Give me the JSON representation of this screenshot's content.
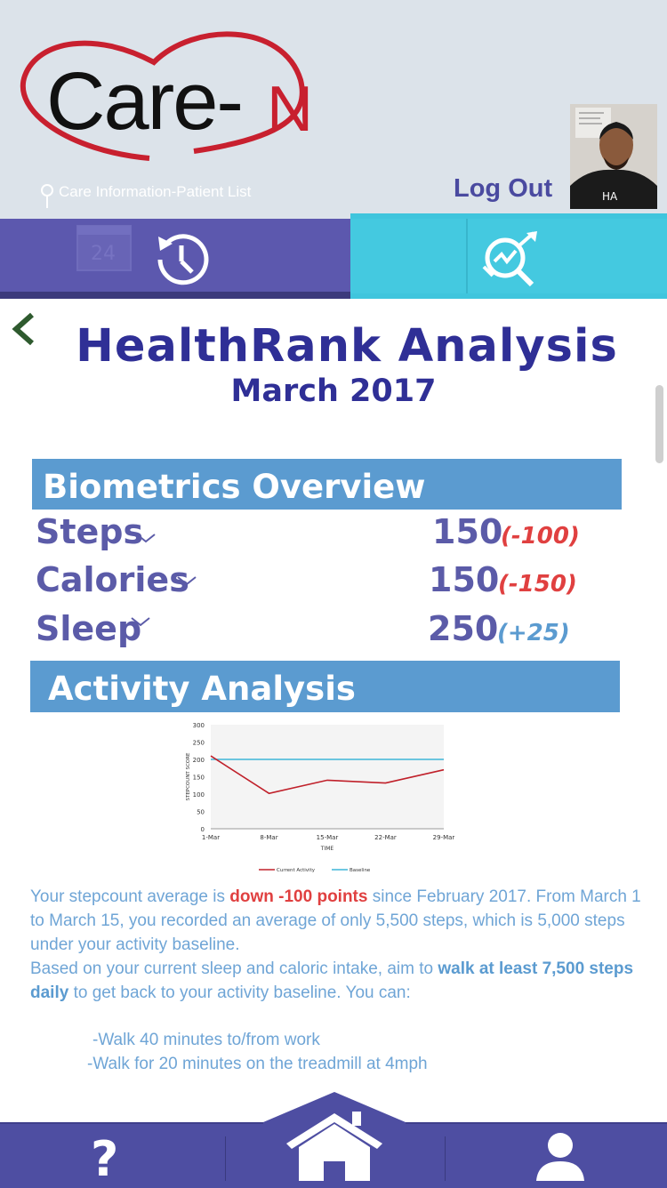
{
  "header": {
    "logo_main": "Care-",
    "logo_n": "N",
    "care_info": "Care Information-Patient List",
    "logout_label": "Log Out",
    "calendar_number": "24"
  },
  "colors": {
    "brand_purple": "#5c58ae",
    "brand_cyan": "#44c9e0",
    "title_blue": "#2f2f96",
    "section_blue": "#5b9bd0",
    "negative_red": "#e04040",
    "positive_blue": "#5b9bd0",
    "logo_red": "#c8202f"
  },
  "icons": {
    "tab_left": "history-icon",
    "tab_right": "analysis-icon",
    "back": "chevron-left-icon",
    "bottom_left": "help-icon",
    "bottom_center": "home-icon",
    "bottom_right": "user-icon"
  },
  "page": {
    "title": "HealthRank Analysis",
    "subtitle": "March 2017"
  },
  "biometrics": {
    "heading": "Biometrics Overview",
    "items": [
      {
        "label": "Steps",
        "value": "150",
        "delta": "(-100)"
      },
      {
        "label": "Calories",
        "value": "150",
        "delta": "(-150)"
      },
      {
        "label": "Sleep",
        "value": "250",
        "delta": "(+25)"
      }
    ]
  },
  "activity": {
    "heading": "Activity Analysis",
    "para1_pre": "Your stepcount average is ",
    "para1_hl": "down -100 points",
    "para1_post": " since February 2017. From March 1 to March 15, you recorded an average of only 5,500 steps, which is 5,000 steps under your activity baseline.",
    "para2_pre": "Based on your current sleep and caloric intake, aim to ",
    "para2_hl": "walk at least 7,500 steps daily",
    "para2_post": " to get back to your activity baseline. You can:",
    "bullets": [
      "-Walk 40 minutes to/from work",
      "-Walk for 20 minutes on the treadmill at 4mph"
    ]
  },
  "chart_data": {
    "type": "line",
    "x": [
      "1-Mar",
      "8-Mar",
      "15-Mar",
      "22-Mar",
      "29-Mar"
    ],
    "ylabel": "STEPCOUNT SCORE",
    "xlabel": "TIME",
    "ylim": [
      0,
      300
    ],
    "yticks": [
      "0",
      "50",
      "100",
      "150",
      "200",
      "250",
      "300"
    ],
    "series": [
      {
        "name": "Current Activity",
        "values": [
          210,
          102,
          140,
          132,
          170
        ],
        "color": "#c0202a"
      },
      {
        "name": "Baseline",
        "values": [
          200,
          200,
          200,
          200,
          200
        ],
        "color": "#3fb6d8"
      }
    ],
    "legend": "bottom"
  }
}
